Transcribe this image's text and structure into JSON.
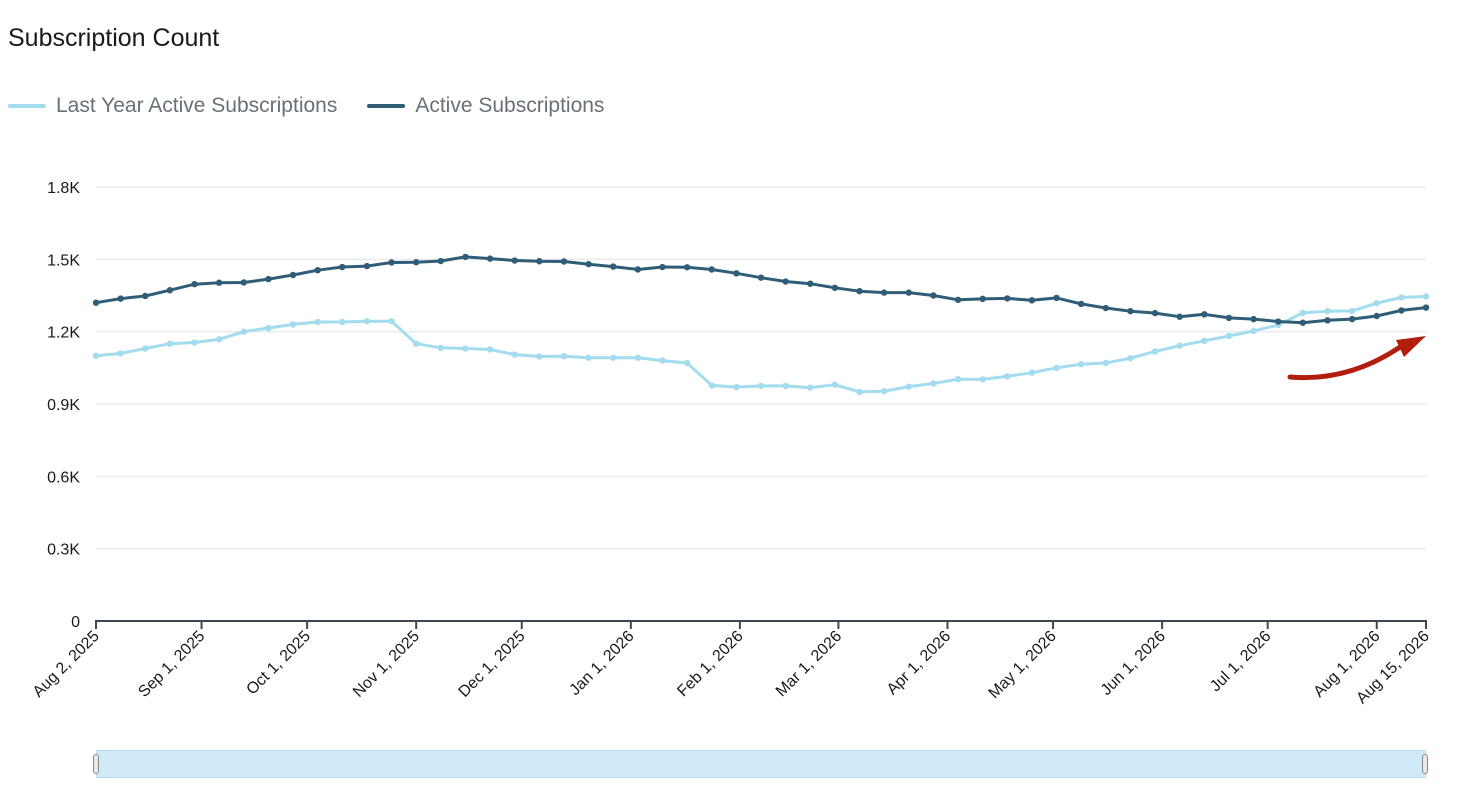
{
  "title": "Subscription Count",
  "colors": {
    "last_year": "#a2dcee",
    "active": "#2f5d78",
    "grid": "#e9ebed",
    "axis": "#414750",
    "brush": "#d1eaf7",
    "arrow": "#b21e0e"
  },
  "legend": [
    {
      "label": "Last Year Active Subscriptions",
      "color": "#a2dcee"
    },
    {
      "label": "Active Subscriptions",
      "color": "#2f5d78"
    }
  ],
  "chart_data": {
    "type": "line",
    "title": "Subscription Count",
    "xlabel": "",
    "ylabel": "",
    "ylim": [
      0,
      1800
    ],
    "y_ticks": [
      {
        "value": 0,
        "label": "0"
      },
      {
        "value": 300,
        "label": "0.3K"
      },
      {
        "value": 600,
        "label": "0.6K"
      },
      {
        "value": 900,
        "label": "0.9K"
      },
      {
        "value": 1200,
        "label": "1.2K"
      },
      {
        "value": 1500,
        "label": "1.5K"
      },
      {
        "value": 1800,
        "label": "1.8K"
      }
    ],
    "x_range": [
      "2025-08-02",
      "2026-08-15"
    ],
    "x_ticks": [
      {
        "date": "2025-08-02",
        "label": "Aug 2, 2025"
      },
      {
        "date": "2025-09-01",
        "label": "Sep 1, 2025"
      },
      {
        "date": "2025-10-01",
        "label": "Oct 1, 2025"
      },
      {
        "date": "2025-11-01",
        "label": "Nov 1, 2025"
      },
      {
        "date": "2025-12-01",
        "label": "Dec 1, 2025"
      },
      {
        "date": "2026-01-01",
        "label": "Jan 1, 2026"
      },
      {
        "date": "2026-02-01",
        "label": "Feb 1, 2026"
      },
      {
        "date": "2026-03-01",
        "label": "Mar 1, 2026"
      },
      {
        "date": "2026-04-01",
        "label": "Apr 1, 2026"
      },
      {
        "date": "2026-05-01",
        "label": "May 1, 2026"
      },
      {
        "date": "2026-06-01",
        "label": "Jun 1, 2026"
      },
      {
        "date": "2026-07-01",
        "label": "Jul 1, 2026"
      },
      {
        "date": "2026-08-01",
        "label": "Aug 1, 2026"
      },
      {
        "date": "2026-08-15",
        "label": "Aug 15, 2026"
      }
    ],
    "grid": true,
    "legend_position": "top-left",
    "x": [
      "2025-08-02",
      "2025-08-09",
      "2025-08-16",
      "2025-08-23",
      "2025-08-30",
      "2025-09-06",
      "2025-09-13",
      "2025-09-20",
      "2025-09-27",
      "2025-10-04",
      "2025-10-11",
      "2025-10-18",
      "2025-10-25",
      "2025-11-01",
      "2025-11-08",
      "2025-11-15",
      "2025-11-22",
      "2025-11-29",
      "2025-12-06",
      "2025-12-13",
      "2025-12-20",
      "2025-12-27",
      "2026-01-03",
      "2026-01-10",
      "2026-01-17",
      "2026-01-24",
      "2026-01-31",
      "2026-02-07",
      "2026-02-14",
      "2026-02-21",
      "2026-02-28",
      "2026-03-07",
      "2026-03-14",
      "2026-03-21",
      "2026-03-28",
      "2026-04-04",
      "2026-04-11",
      "2026-04-18",
      "2026-04-25",
      "2026-05-02",
      "2026-05-09",
      "2026-05-16",
      "2026-05-23",
      "2026-05-30",
      "2026-06-06",
      "2026-06-13",
      "2026-06-20",
      "2026-06-27",
      "2026-07-04",
      "2026-07-11",
      "2026-07-18",
      "2026-07-25",
      "2026-08-01",
      "2026-08-08",
      "2026-08-15"
    ],
    "series": [
      {
        "name": "Last Year Active Subscriptions",
        "color": "#a2dcee",
        "values": [
          1100,
          1110,
          1130,
          1150,
          1155,
          1168,
          1200,
          1215,
          1230,
          1240,
          1240,
          1243,
          1243,
          1150,
          1133,
          1130,
          1126,
          1105,
          1097,
          1098,
          1092,
          1092,
          1092,
          1080,
          1070,
          977,
          970,
          975,
          975,
          968,
          980,
          950,
          953,
          972,
          985,
          1003,
          1002,
          1015,
          1030,
          1050,
          1065,
          1070,
          1090,
          1118,
          1142,
          1162,
          1182,
          1203,
          1228,
          1278,
          1285,
          1286,
          1318,
          1342,
          1346
        ]
      },
      {
        "name": "Active Subscriptions",
        "color": "#2f5d78",
        "values": [
          1320,
          1337,
          1348,
          1372,
          1397,
          1403,
          1404,
          1418,
          1435,
          1455,
          1468,
          1472,
          1487,
          1488,
          1493,
          1510,
          1503,
          1495,
          1492,
          1491,
          1480,
          1470,
          1458,
          1468,
          1467,
          1458,
          1442,
          1424,
          1408,
          1399,
          1382,
          1368,
          1362,
          1362,
          1350,
          1332,
          1336,
          1338,
          1330,
          1340,
          1315,
          1298,
          1285,
          1277,
          1262,
          1272,
          1257,
          1252,
          1242,
          1237,
          1247,
          1252,
          1265,
          1288,
          1300
        ]
      }
    ]
  }
}
